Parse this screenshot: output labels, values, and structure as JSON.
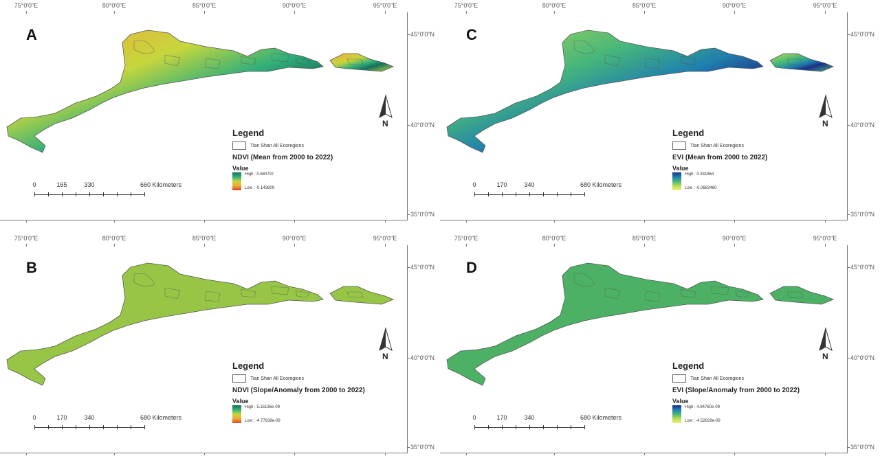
{
  "axes": {
    "lon_labels": [
      "75°0'0\"E",
      "80°0'0\"E",
      "85°0'0\"E",
      "90°0'0\"E",
      "95°0'0\"E"
    ],
    "lat_labels": [
      "45°0'0\"N",
      "40°0'0\"N",
      "35°0'0\"N"
    ]
  },
  "legend": {
    "title": "Legend",
    "ecoregion": "Tian Shan All Ecoregions",
    "value_label": "Value",
    "north": "N"
  },
  "panels": [
    {
      "id": "a",
      "letter": "A",
      "layer": "NDVI (Mean from 2000 to 2022)",
      "high": "High : 0.580797",
      "low": "Low : -0.143809",
      "scale": [
        "0",
        "165",
        "330",
        "660 Kilometers"
      ],
      "scale_km": [
        0,
        165,
        330,
        660
      ],
      "ramp": [
        "#13705c",
        "#33b07a",
        "#c6d63c",
        "#f2a83a",
        "#d9481e"
      ],
      "fill": "#8fc54a"
    },
    {
      "id": "c",
      "letter": "C",
      "layer": "EVI (Mean from 2000 to 2022)",
      "high": "High : 0.331864",
      "low": "Low : -0.0683460",
      "scale": [
        "0",
        "170",
        "340",
        "680 Kilometers"
      ],
      "scale_km": [
        0,
        170,
        340,
        680
      ],
      "ramp": [
        "#1b2f87",
        "#1f7fb0",
        "#46b67a",
        "#b7dc55",
        "#f1ef79"
      ],
      "fill": "#5fbf62"
    },
    {
      "id": "b",
      "letter": "B",
      "layer": "NDVI (Slope/Anomaly from 2000 to 2022)",
      "high": "High : 5.15136e-09",
      "low": "Low : -4.77938e-09",
      "scale": [
        "0",
        "170",
        "340",
        "680 Kilometers"
      ],
      "scale_km": [
        0,
        170,
        340,
        680
      ],
      "ramp": [
        "#13705c",
        "#33b07a",
        "#c6d63c",
        "#f2a83a",
        "#d9481e"
      ],
      "fill": "#97c646"
    },
    {
      "id": "d",
      "letter": "D",
      "layer": "EVI (Slope/Anomaly from 2000 to 2022)",
      "high": "High : 4.94760e-09",
      "low": "Low : -4.52829e-09",
      "scale": [
        "0",
        "170",
        "340",
        "680 Kilometers"
      ],
      "scale_km": [
        0,
        170,
        340,
        680
      ],
      "ramp": [
        "#1b2f87",
        "#1f7fb0",
        "#46b67a",
        "#b7dc55",
        "#f1ef79"
      ],
      "fill": "#4db165"
    }
  ]
}
